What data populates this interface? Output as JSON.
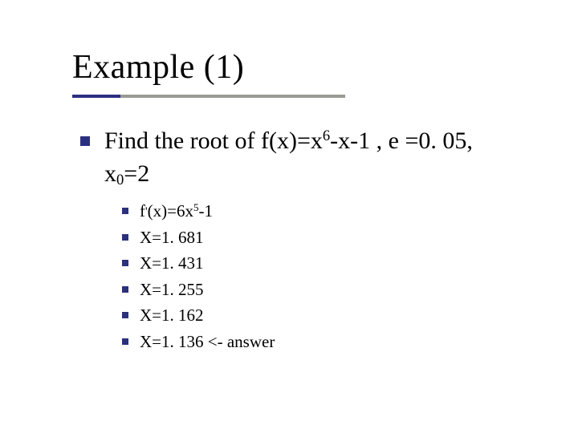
{
  "colors": {
    "bullet": "#2b2f80",
    "underline_accent": "#2b2f80",
    "underline_gray": "#9a9a95",
    "text": "#000000",
    "background": "#ffffff"
  },
  "title": "Example (1)",
  "main": {
    "prefix": "Find the root of f(x)=x",
    "exp1": "6",
    "mid": "-x-1 , ",
    "eps": "e",
    "tail": " =0. 05,",
    "line2_pre": "x",
    "line2_sub": "0",
    "line2_post": "=2"
  },
  "items": [
    {
      "pre": "f",
      "apos": "'",
      "mid": "(x)=6x",
      "exp": "5",
      "post": "-1"
    },
    {
      "text": "X=1. 681"
    },
    {
      "text": "X=1. 431"
    },
    {
      "text": "X=1. 255"
    },
    {
      "text": "X=1. 162"
    },
    {
      "text": "X=1. 136  <- answer"
    }
  ]
}
